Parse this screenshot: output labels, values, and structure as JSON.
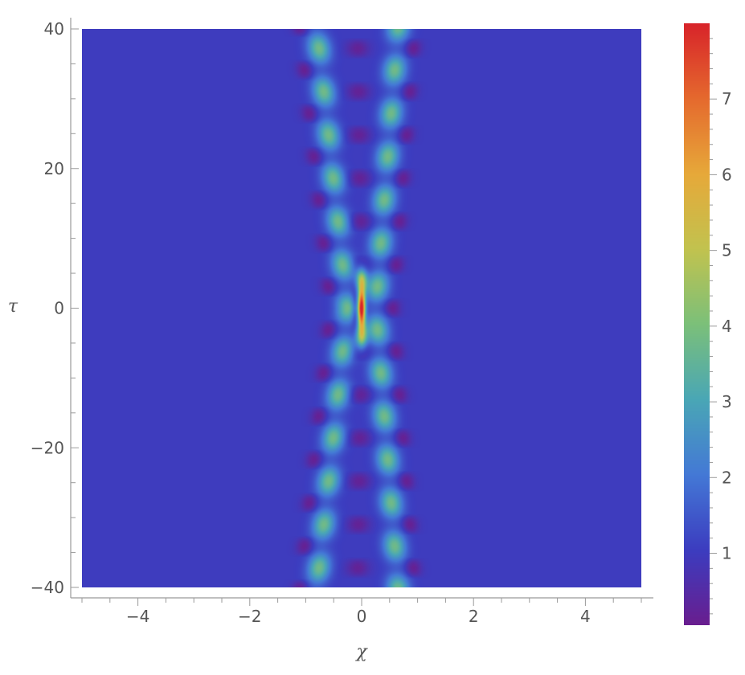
{
  "chart_data": {
    "type": "heatmap",
    "title": "",
    "xlabel": "χ",
    "ylabel": "τ",
    "xlim": [
      -5,
      5
    ],
    "ylim": [
      -40,
      40
    ],
    "x_ticks": [
      -4,
      -2,
      0,
      2,
      4
    ],
    "x_tick_labels": [
      "−4",
      "−2",
      "0",
      "2",
      "4"
    ],
    "y_ticks": [
      -40,
      -20,
      0,
      20,
      40
    ],
    "y_tick_labels": [
      "−40",
      "−20",
      "0",
      "20",
      "40"
    ],
    "colorbar": {
      "range": [
        0.05,
        8.0
      ],
      "ticks": [
        1,
        2,
        3,
        4,
        5,
        6,
        7
      ],
      "tick_labels": [
        "1",
        "2",
        "3",
        "4",
        "5",
        "6",
        "7"
      ],
      "colormap": [
        "#6a1e8f",
        "#3c3dc0",
        "#4479d6",
        "#4aa7b6",
        "#7cc07a",
        "#c2c34f",
        "#e7a93a",
        "#e56a2e",
        "#d8242a"
      ]
    },
    "background_value": 1.0,
    "peak": {
      "x": 0,
      "y": 0,
      "value": 7.9
    },
    "branches": [
      {
        "name": "",
        "x_at_center": -0.25,
        "x_at_edges": -0.8
      },
      {
        "name": "",
        "x_at_center": 0.25,
        "x_at_edges": 0.65
      }
    ],
    "oscillation_period_tau": 6.2
  }
}
